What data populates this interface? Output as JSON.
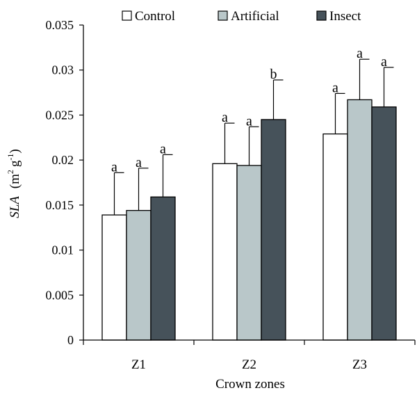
{
  "chart_data": {
    "type": "bar",
    "xlabel": "Crown zones",
    "ylabel": {
      "italic": "SLA",
      "unit_base": "m",
      "unit_exp": "2",
      "unit_mid": "g",
      "unit_exp2": "-1"
    },
    "ylim": [
      0,
      0.035
    ],
    "yticks": [
      "0",
      "0.005",
      "0.01",
      "0.015",
      "0.02",
      "0.025",
      "0.03",
      "0.035"
    ],
    "categories": [
      "Z1",
      "Z2",
      "Z3"
    ],
    "legend_position": "top",
    "series": [
      {
        "name": "Control",
        "color": "#ffffff",
        "values": [
          0.0139,
          0.0196,
          0.0229
        ],
        "errors": [
          0.0047,
          0.0045,
          0.0045
        ],
        "sig": [
          "a",
          "a",
          "a"
        ]
      },
      {
        "name": "Artificial",
        "color": "#b9c7c9",
        "values": [
          0.0144,
          0.0194,
          0.0267
        ],
        "errors": [
          0.0047,
          0.0043,
          0.0045
        ],
        "sig": [
          "a",
          "a",
          "a"
        ]
      },
      {
        "name": "Insect",
        "color": "#46525a",
        "values": [
          0.0159,
          0.0245,
          0.0259
        ],
        "errors": [
          0.0047,
          0.0044,
          0.0044
        ],
        "sig": [
          "a",
          "b",
          "a"
        ]
      }
    ]
  }
}
